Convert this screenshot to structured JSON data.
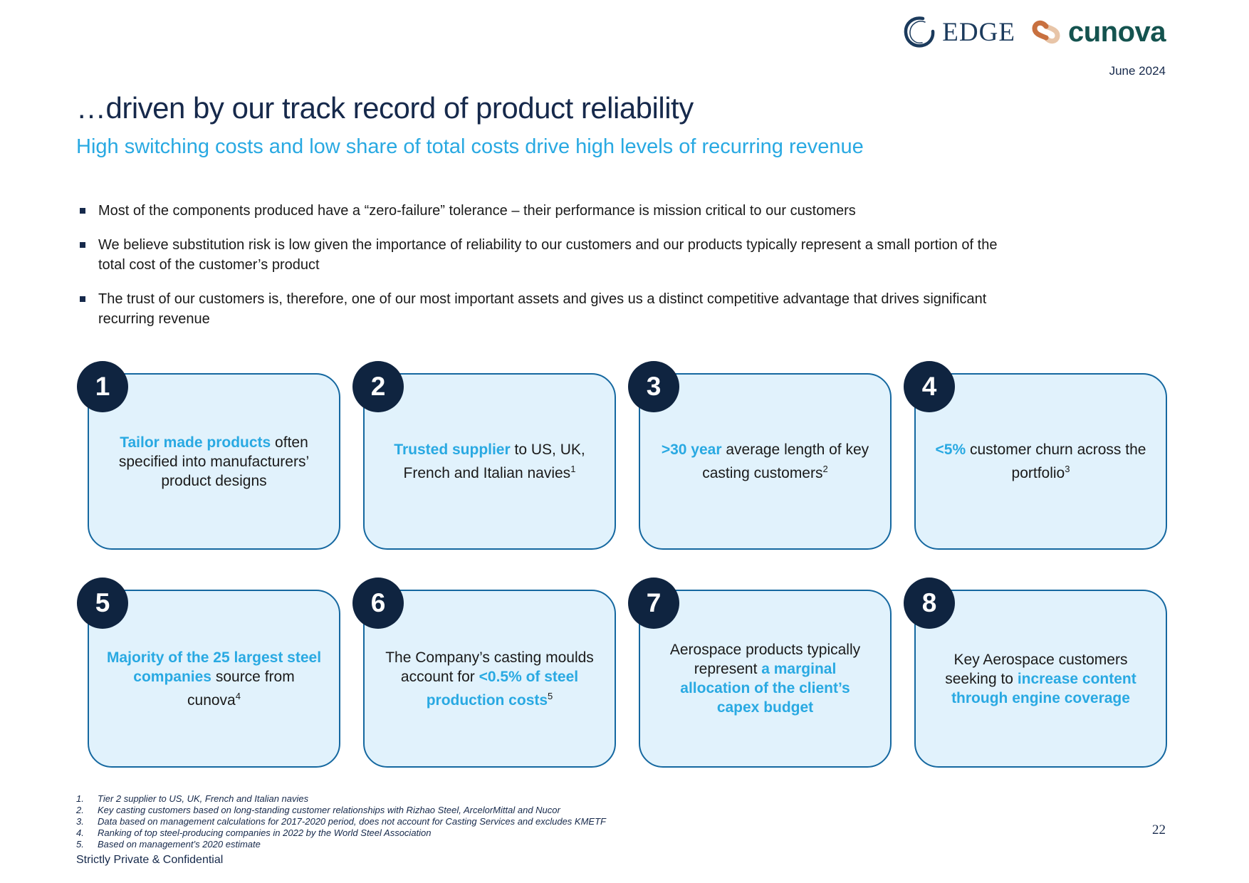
{
  "header": {
    "edge_text": "EDGE",
    "cunova_text": "cunova",
    "date": "June 2024"
  },
  "title": "…driven by our track record of product reliability",
  "subtitle": "High switching costs and low share of total costs drive high levels of recurring revenue",
  "bullets": [
    "Most of the components produced have a “zero-failure” tolerance – their performance is mission critical to our customers",
    "We believe substitution risk is low given the importance of reliability to our customers and our products typically represent a small portion of the total cost of the customer’s product",
    "The trust of our customers is, therefore, one of our most important assets and gives us a distinct competitive advantage that drives significant recurring revenue"
  ],
  "cards": [
    {
      "number": "1",
      "segments": [
        {
          "t": "Tailor made products",
          "accent": true
        },
        {
          "t": " often specified into manufacturers’ product designs"
        }
      ]
    },
    {
      "number": "2",
      "segments": [
        {
          "t": "Trusted supplier",
          "accent": true
        },
        {
          "t": " to US, UK, French and Italian navies"
        },
        {
          "t": "1",
          "sup": true
        }
      ]
    },
    {
      "number": "3",
      "segments": [
        {
          "t": ">30 year",
          "accent": true
        },
        {
          "t": " average length of key casting customers"
        },
        {
          "t": "2",
          "sup": true
        }
      ]
    },
    {
      "number": "4",
      "segments": [
        {
          "t": "<5%",
          "accent": true
        },
        {
          "t": " customer churn across the portfolio"
        },
        {
          "t": "3",
          "sup": true
        }
      ]
    },
    {
      "number": "5",
      "segments": [
        {
          "t": "Majority of the 25 largest steel companies",
          "accent": true
        },
        {
          "t": " source from cunova"
        },
        {
          "t": "4",
          "sup": true
        }
      ]
    },
    {
      "number": "6",
      "segments": [
        {
          "t": "The Company’s casting moulds account for "
        },
        {
          "t": "<0.5% of steel production costs",
          "accent": true
        },
        {
          "t": "5",
          "sup": true
        }
      ]
    },
    {
      "number": "7",
      "segments": [
        {
          "t": "Aerospace products typically represent "
        },
        {
          "t": "a marginal allocation of the client’s capex budget",
          "accent": true
        }
      ]
    },
    {
      "number": "8",
      "segments": [
        {
          "t": "Key Aerospace customers seeking to "
        },
        {
          "t": "increase content through engine coverage",
          "accent": true
        }
      ]
    }
  ],
  "footnotes": [
    {
      "num": "1.",
      "text": "Tier 2 supplier to US, UK, French and Italian navies"
    },
    {
      "num": "2.",
      "text": "Key casting customers based on long-standing customer relationships with Rizhao Steel, ArcelorMittal and Nucor"
    },
    {
      "num": "3.",
      "text": "Data based on management calculations for 2017-2020 period, does not account for Casting Services and excludes KMETF"
    },
    {
      "num": "4.",
      "text": "Ranking of top steel-producing companies in 2022 by the World Steel Association"
    },
    {
      "num": "5.",
      "text": "Based on management’s 2020 estimate"
    }
  ],
  "footer": {
    "confidential": "Strictly Private & Confidential",
    "page": "22"
  },
  "colors": {
    "navy": "#16294B",
    "accent": "#29A9E2",
    "card-bg": "#E1F2FC",
    "card-border": "#1568A0",
    "badge": "#0F2440",
    "body-text": "#1A1A1A",
    "edge-navy": "#1B3A5C",
    "cunova-teal": "#14534F",
    "cunova-copper": "#C8703F",
    "cunova-tan": "#E8C5A8"
  }
}
